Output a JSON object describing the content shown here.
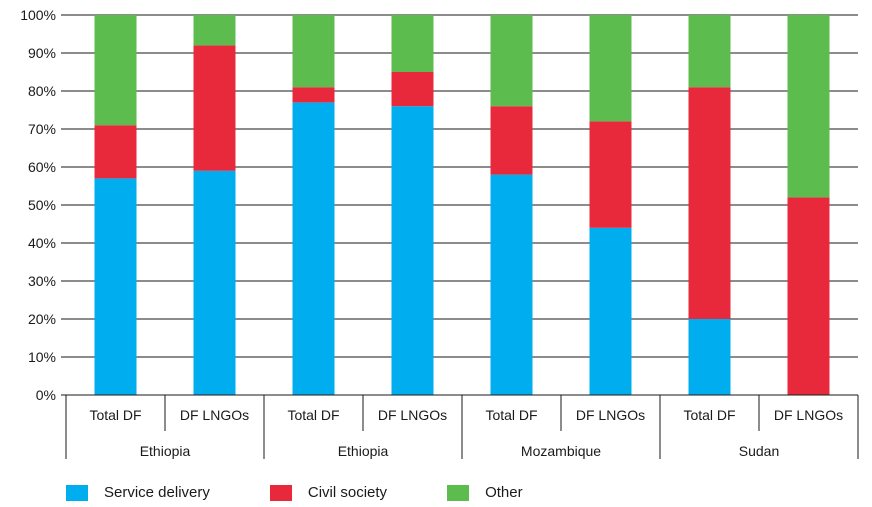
{
  "chart_data": {
    "type": "bar",
    "stacked": true,
    "percent": true,
    "categories": [
      "Total DF",
      "DF LNGOs",
      "Total DF",
      "DF LNGOs",
      "Total DF",
      "DF LNGOs",
      "Total DF",
      "DF LNGOs"
    ],
    "groups": [
      {
        "label": "Ethiopia",
        "span": 2
      },
      {
        "label": "Ethiopia",
        "span": 2
      },
      {
        "label": "Mozambique",
        "span": 2
      },
      {
        "label": "Sudan",
        "span": 2
      }
    ],
    "series": [
      {
        "name": "Service delivery",
        "color": "#00aeef",
        "values": [
          57,
          59,
          77,
          76,
          58,
          44,
          20,
          0
        ]
      },
      {
        "name": "Civil society",
        "color": "#e8293c",
        "values": [
          14,
          33,
          4,
          9,
          18,
          28,
          61,
          52
        ]
      },
      {
        "name": "Other",
        "color": "#5cbc4d",
        "values": [
          29,
          8,
          19,
          15,
          24,
          28,
          19,
          48
        ]
      }
    ],
    "ylim": [
      0,
      100
    ],
    "yticks": [
      "0%",
      "10%",
      "20%",
      "30%",
      "40%",
      "50%",
      "60%",
      "70%",
      "80%",
      "90%",
      "100%"
    ],
    "grid": true,
    "legend_position": "bottom-left"
  }
}
